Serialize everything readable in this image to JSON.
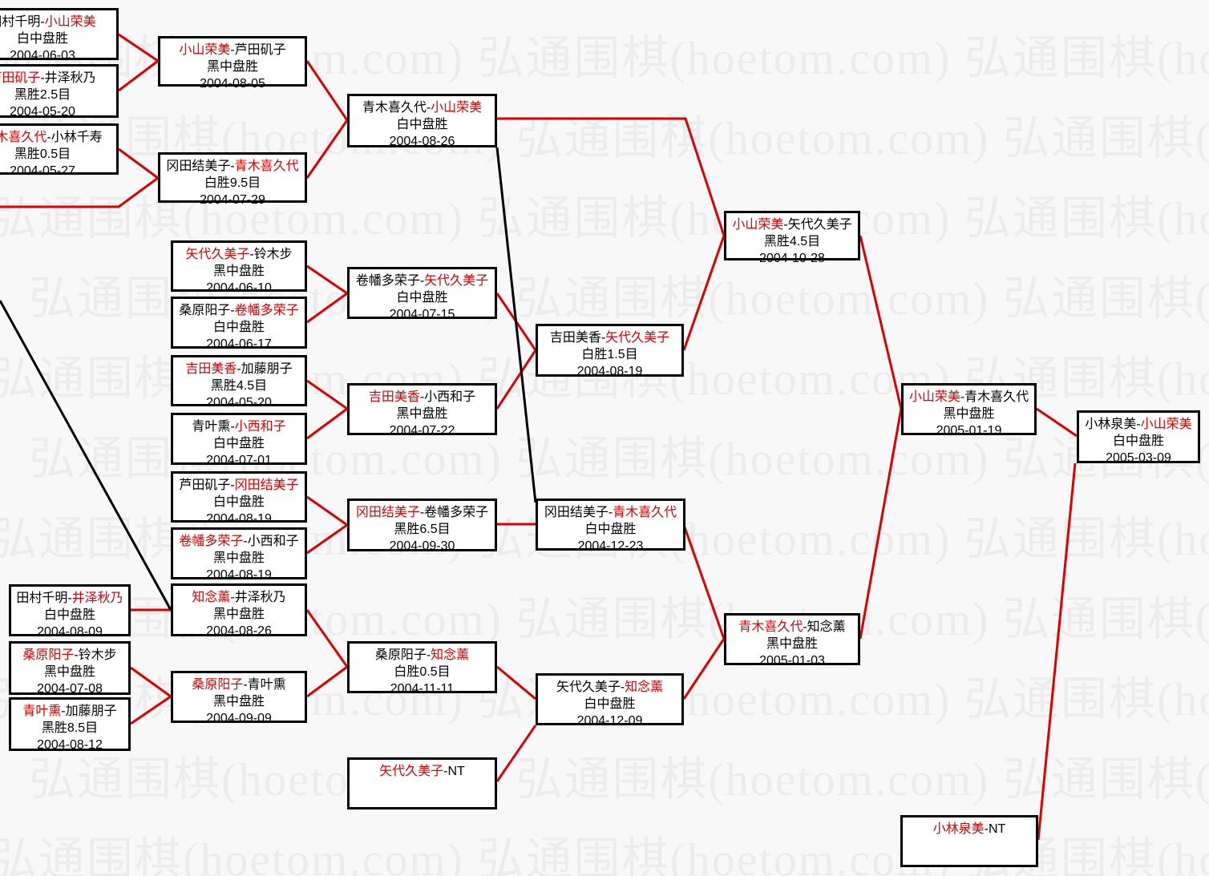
{
  "watermark": {
    "text": "弘通围棋(hoetom.com)"
  },
  "colors": {
    "background": "#f8f8f8",
    "watermark": "#ececec",
    "winner_red": "#dd0000",
    "winner_line": "#dd0000",
    "loser_line": "#000000",
    "box_border": "#000000"
  },
  "separator": "-",
  "matches": [
    {
      "id": "A1",
      "p1": "田村千明",
      "p2": "小山荣美",
      "winner": 2,
      "result": "白中盘胜",
      "date": "2004-06-03"
    },
    {
      "id": "A2",
      "p1": "芦田矶子",
      "p2": "井泽秋乃",
      "winner": 1,
      "result": "黑胜2.5目",
      "date": "2004-05-20"
    },
    {
      "id": "A3",
      "p1": "青木喜久代",
      "p2": "小林千寿",
      "winner": 1,
      "result": "黑胜0.5目",
      "date": "2004-05-27"
    },
    {
      "id": "A4",
      "p1": "田村千明",
      "p2": "井泽秋乃",
      "winner": 2,
      "result": "白中盘胜",
      "date": "2004-08-09"
    },
    {
      "id": "A5",
      "p1": "桑原阳子",
      "p2": "铃木步",
      "winner": 1,
      "result": "黑中盘胜",
      "date": "2004-07-08"
    },
    {
      "id": "A6",
      "p1": "青叶熏",
      "p2": "加藤朋子",
      "winner": 1,
      "result": "黑胜8.5目",
      "date": "2004-08-12"
    },
    {
      "id": "B1",
      "p1": "小山荣美",
      "p2": "芦田矶子",
      "winner": 1,
      "result": "黑中盘胜",
      "date": "2004-08-05"
    },
    {
      "id": "B2",
      "p1": "冈田结美子",
      "p2": "青木喜久代",
      "winner": 2,
      "result": "白胜9.5目",
      "date": "2004-07-29"
    },
    {
      "id": "B3",
      "p1": "矢代久美子",
      "p2": "铃木步",
      "winner": 1,
      "result": "黑中盘胜",
      "date": "2004-06-10"
    },
    {
      "id": "B4",
      "p1": "桑原阳子",
      "p2": "卷幡多荣子",
      "winner": 2,
      "result": "白中盘胜",
      "date": "2004-06-17"
    },
    {
      "id": "B5",
      "p1": "吉田美香",
      "p2": "加藤朋子",
      "winner": 1,
      "result": "黑胜4.5目",
      "date": "2004-05-20"
    },
    {
      "id": "B6",
      "p1": "青叶熏",
      "p2": "小西和子",
      "winner": 2,
      "result": "白中盘胜",
      "date": "2004-07-01"
    },
    {
      "id": "B7",
      "p1": "芦田矶子",
      "p2": "冈田结美子",
      "winner": 2,
      "result": "白中盘胜",
      "date": "2004-08-19"
    },
    {
      "id": "B8",
      "p1": "卷幡多荣子",
      "p2": "小西和子",
      "winner": 1,
      "result": "黑中盘胜",
      "date": "2004-08-19"
    },
    {
      "id": "B9",
      "p1": "知念薰",
      "p2": "井泽秋乃",
      "winner": 1,
      "result": "黑中盘胜",
      "date": "2004-08-26"
    },
    {
      "id": "B10",
      "p1": "桑原阳子",
      "p2": "青叶熏",
      "winner": 1,
      "result": "黑中盘胜",
      "date": "2004-09-09"
    },
    {
      "id": "C1",
      "p1": "青木喜久代",
      "p2": "小山荣美",
      "winner": 2,
      "result": "白中盘胜",
      "date": "2004-08-26"
    },
    {
      "id": "C2",
      "p1": "卷幡多荣子",
      "p2": "矢代久美子",
      "winner": 2,
      "result": "白中盘胜",
      "date": "2004-07-15"
    },
    {
      "id": "C3",
      "p1": "吉田美香",
      "p2": "小西和子",
      "winner": 1,
      "result": "黑中盘胜",
      "date": "2004-07-22"
    },
    {
      "id": "C4",
      "p1": "冈田结美子",
      "p2": "卷幡多荣子",
      "winner": 1,
      "result": "黑胜6.5目",
      "date": "2004-09-30"
    },
    {
      "id": "C5",
      "p1": "桑原阳子",
      "p2": "知念薰",
      "winner": 2,
      "result": "白胜0.5目",
      "date": "2004-11-11"
    },
    {
      "id": "C6",
      "p1": "矢代久美子",
      "p2": "NT",
      "winner": 1,
      "result": "",
      "date": ""
    },
    {
      "id": "D1",
      "p1": "吉田美香",
      "p2": "矢代久美子",
      "winner": 2,
      "result": "白胜1.5目",
      "date": "2004-08-19"
    },
    {
      "id": "D2",
      "p1": "冈田结美子",
      "p2": "青木喜久代",
      "winner": 2,
      "result": "白中盘胜",
      "date": "2004-12-23"
    },
    {
      "id": "D3",
      "p1": "矢代久美子",
      "p2": "知念薰",
      "winner": 2,
      "result": "白中盘胜",
      "date": "2004-12-09"
    },
    {
      "id": "E1",
      "p1": "小山荣美",
      "p2": "矢代久美子",
      "winner": 1,
      "result": "黑胜4.5目",
      "date": "2004-10-28"
    },
    {
      "id": "E2",
      "p1": "青木喜久代",
      "p2": "知念薰",
      "winner": 1,
      "result": "黑中盘胜",
      "date": "2005-01-03"
    },
    {
      "id": "F1",
      "p1": "小山荣美",
      "p2": "青木喜久代",
      "winner": 1,
      "result": "黑中盘胜",
      "date": "2005-01-19"
    },
    {
      "id": "F2",
      "p1": "小林泉美",
      "p2": "NT",
      "winner": 1,
      "result": "",
      "date": ""
    },
    {
      "id": "G1",
      "p1": "小林泉美",
      "p2": "小山荣美",
      "winner": 2,
      "result": "白中盘胜",
      "date": "2005-03-09"
    }
  ]
}
